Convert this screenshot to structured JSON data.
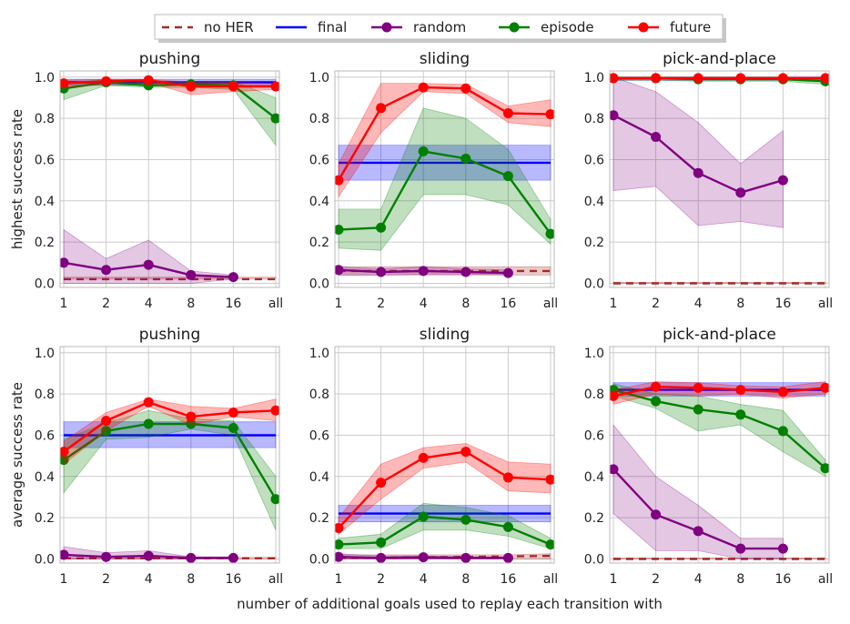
{
  "figure": {
    "xlabel": "number of additional goals used to replay each transition with",
    "legend": {
      "placement": "top-center",
      "items": [
        {
          "key": "noher",
          "label": "no HER",
          "color": "#a52a2a",
          "style": "dashed"
        },
        {
          "key": "final",
          "label": "final",
          "color": "#0000ff",
          "style": "line"
        },
        {
          "key": "random",
          "label": "random",
          "color": "#800080",
          "style": "line-marker"
        },
        {
          "key": "episode",
          "label": "episode",
          "color": "#008000",
          "style": "line-marker"
        },
        {
          "key": "future",
          "label": "future",
          "color": "#ff0000",
          "style": "line-marker"
        }
      ]
    }
  },
  "chart_data": [
    {
      "type": "line",
      "row": 0,
      "col": 0,
      "title": "pushing",
      "ylabel": "highest success rate",
      "categories": [
        "1",
        "2",
        "4",
        "8",
        "16",
        "all"
      ],
      "yticks": [
        "0.0",
        "0.2",
        "0.4",
        "0.6",
        "0.8",
        "1.0"
      ],
      "ylim": [
        -0.02,
        1.03
      ],
      "grid": true,
      "series": [
        {
          "key": "noher",
          "values": [
            0.02,
            0.02,
            0.02,
            0.02,
            0.02,
            0.02
          ],
          "lo": [
            0.02,
            0.02,
            0.02,
            0.02,
            0.02,
            0.02
          ],
          "hi": [
            0.03,
            0.03,
            0.03,
            0.03,
            0.03,
            0.03
          ]
        },
        {
          "key": "final",
          "values": [
            0.975,
            0.975,
            0.975,
            0.975,
            0.975,
            0.975
          ],
          "lo": [
            0.96,
            0.96,
            0.96,
            0.96,
            0.96,
            0.96
          ],
          "hi": [
            0.99,
            0.99,
            0.99,
            0.99,
            0.99,
            0.99
          ]
        },
        {
          "key": "random",
          "values": [
            0.1,
            0.065,
            0.09,
            0.04,
            0.03,
            null
          ],
          "lo": [
            0.0,
            0.0,
            0.0,
            0.0,
            0.02,
            null
          ],
          "hi": [
            0.26,
            0.12,
            0.21,
            0.06,
            0.04,
            null
          ]
        },
        {
          "key": "episode",
          "values": [
            0.945,
            0.975,
            0.96,
            0.965,
            0.96,
            0.8
          ],
          "lo": [
            0.89,
            0.96,
            0.95,
            0.95,
            0.94,
            0.67
          ],
          "hi": [
            0.97,
            0.99,
            0.97,
            0.98,
            0.98,
            0.9
          ]
        },
        {
          "key": "future",
          "values": [
            0.97,
            0.98,
            0.985,
            0.955,
            0.955,
            0.955
          ],
          "lo": [
            0.95,
            0.965,
            0.975,
            0.915,
            0.93,
            0.94
          ],
          "hi": [
            0.985,
            0.99,
            0.99,
            0.975,
            0.975,
            0.97
          ]
        }
      ]
    },
    {
      "type": "line",
      "row": 0,
      "col": 1,
      "title": "sliding",
      "ylabel": "",
      "categories": [
        "1",
        "2",
        "4",
        "8",
        "16",
        "all"
      ],
      "yticks": [
        "0.0",
        "0.2",
        "0.4",
        "0.6",
        "0.8",
        "1.0"
      ],
      "ylim": [
        -0.02,
        1.03
      ],
      "grid": true,
      "series": [
        {
          "key": "noher",
          "values": [
            0.06,
            0.06,
            0.06,
            0.06,
            0.06,
            0.06
          ],
          "lo": [
            0.04,
            0.04,
            0.04,
            0.04,
            0.04,
            0.04
          ],
          "hi": [
            0.08,
            0.08,
            0.08,
            0.08,
            0.08,
            0.08
          ]
        },
        {
          "key": "final",
          "values": [
            0.585,
            0.585,
            0.585,
            0.585,
            0.585,
            0.585
          ],
          "lo": [
            0.5,
            0.5,
            0.5,
            0.5,
            0.5,
            0.5
          ],
          "hi": [
            0.67,
            0.67,
            0.67,
            0.67,
            0.67,
            0.67
          ]
        },
        {
          "key": "random",
          "values": [
            0.065,
            0.055,
            0.06,
            0.055,
            0.05,
            null
          ],
          "lo": [
            0.04,
            0.04,
            0.045,
            0.045,
            0.04,
            null
          ],
          "hi": [
            0.08,
            0.07,
            0.08,
            0.07,
            0.065,
            null
          ]
        },
        {
          "key": "episode",
          "values": [
            0.26,
            0.27,
            0.64,
            0.605,
            0.52,
            0.24
          ],
          "lo": [
            0.17,
            0.16,
            0.43,
            0.43,
            0.38,
            0.19
          ],
          "hi": [
            0.36,
            0.36,
            0.85,
            0.8,
            0.65,
            0.31
          ]
        },
        {
          "key": "future",
          "values": [
            0.5,
            0.85,
            0.95,
            0.945,
            0.825,
            0.82
          ],
          "lo": [
            0.42,
            0.73,
            0.93,
            0.92,
            0.78,
            0.76
          ],
          "hi": [
            0.58,
            0.97,
            0.97,
            0.965,
            0.86,
            0.89
          ]
        }
      ]
    },
    {
      "type": "line",
      "row": 0,
      "col": 2,
      "title": "pick-and-place",
      "ylabel": "",
      "categories": [
        "1",
        "2",
        "4",
        "8",
        "16",
        "all"
      ],
      "yticks": [
        "0.0",
        "0.2",
        "0.4",
        "0.6",
        "0.8",
        "1.0"
      ],
      "ylim": [
        -0.02,
        1.03
      ],
      "grid": true,
      "series": [
        {
          "key": "noher",
          "values": [
            0.0,
            0.0,
            0.0,
            0.0,
            0.0,
            0.0
          ],
          "lo": [
            0.0,
            0.0,
            0.0,
            0.0,
            0.0,
            0.0
          ],
          "hi": [
            0.005,
            0.005,
            0.005,
            0.005,
            0.005,
            0.005
          ]
        },
        {
          "key": "final",
          "values": [
            0.995,
            0.995,
            0.995,
            0.995,
            0.995,
            0.995
          ],
          "lo": [
            0.985,
            0.985,
            0.985,
            0.985,
            0.985,
            0.985
          ],
          "hi": [
            1.0,
            1.0,
            1.0,
            1.0,
            1.0,
            1.0
          ]
        },
        {
          "key": "random",
          "values": [
            0.815,
            0.71,
            0.535,
            0.44,
            0.5,
            null
          ],
          "lo": [
            0.45,
            0.47,
            0.28,
            0.3,
            0.27,
            null
          ],
          "hi": [
            1.0,
            0.93,
            0.78,
            0.58,
            0.74,
            null
          ]
        },
        {
          "key": "episode",
          "values": [
            0.995,
            0.995,
            0.99,
            0.99,
            0.99,
            0.98
          ],
          "lo": [
            0.985,
            0.985,
            0.98,
            0.98,
            0.98,
            0.965
          ],
          "hi": [
            1.0,
            1.0,
            1.0,
            1.0,
            1.0,
            0.99
          ]
        },
        {
          "key": "future",
          "values": [
            0.995,
            0.995,
            0.995,
            0.995,
            0.995,
            0.995
          ],
          "lo": [
            0.99,
            0.99,
            0.99,
            0.99,
            0.99,
            0.99
          ],
          "hi": [
            1.0,
            1.0,
            1.0,
            1.0,
            1.0,
            1.0
          ]
        }
      ]
    },
    {
      "type": "line",
      "row": 1,
      "col": 0,
      "title": "pushing",
      "ylabel": "average success rate",
      "categories": [
        "1",
        "2",
        "4",
        "8",
        "16",
        "all"
      ],
      "yticks": [
        "0.0",
        "0.2",
        "0.4",
        "0.6",
        "0.8",
        "1.0"
      ],
      "ylim": [
        -0.02,
        1.03
      ],
      "grid": true,
      "series": [
        {
          "key": "noher",
          "values": [
            0.003,
            0.003,
            0.003,
            0.003,
            0.003,
            0.003
          ],
          "lo": [
            0.0,
            0.0,
            0.0,
            0.0,
            0.0,
            0.0
          ],
          "hi": [
            0.008,
            0.008,
            0.008,
            0.008,
            0.008,
            0.008
          ]
        },
        {
          "key": "final",
          "values": [
            0.6,
            0.6,
            0.6,
            0.6,
            0.6,
            0.6
          ],
          "lo": [
            0.54,
            0.54,
            0.54,
            0.54,
            0.54,
            0.54
          ],
          "hi": [
            0.665,
            0.665,
            0.665,
            0.665,
            0.665,
            0.665
          ]
        },
        {
          "key": "random",
          "values": [
            0.02,
            0.01,
            0.015,
            0.005,
            0.005,
            null
          ],
          "lo": [
            0.0,
            0.0,
            0.0,
            0.0,
            0.0,
            null
          ],
          "hi": [
            0.06,
            0.03,
            0.04,
            0.01,
            0.01,
            null
          ]
        },
        {
          "key": "episode",
          "values": [
            0.48,
            0.62,
            0.655,
            0.655,
            0.635,
            0.29
          ],
          "lo": [
            0.32,
            0.58,
            0.59,
            0.63,
            0.6,
            0.14
          ],
          "hi": [
            0.58,
            0.66,
            0.72,
            0.68,
            0.67,
            0.4
          ]
        },
        {
          "key": "future",
          "values": [
            0.52,
            0.67,
            0.76,
            0.69,
            0.71,
            0.72
          ],
          "lo": [
            0.46,
            0.62,
            0.74,
            0.65,
            0.69,
            0.67
          ],
          "hi": [
            0.57,
            0.71,
            0.775,
            0.74,
            0.73,
            0.775
          ]
        }
      ]
    },
    {
      "type": "line",
      "row": 1,
      "col": 1,
      "title": "sliding",
      "ylabel": "",
      "categories": [
        "1",
        "2",
        "4",
        "8",
        "16",
        "all"
      ],
      "yticks": [
        "0.0",
        "0.2",
        "0.4",
        "0.6",
        "0.8",
        "1.0"
      ],
      "ylim": [
        -0.02,
        1.03
      ],
      "grid": true,
      "series": [
        {
          "key": "noher",
          "values": [
            0.005,
            0.006,
            0.008,
            0.01,
            0.012,
            0.015
          ],
          "lo": [
            0.0,
            0.0,
            0.0,
            0.0,
            0.0,
            0.0
          ],
          "hi": [
            0.02,
            0.02,
            0.02,
            0.02,
            0.02,
            0.025
          ]
        },
        {
          "key": "final",
          "values": [
            0.22,
            0.22,
            0.22,
            0.22,
            0.22,
            0.22
          ],
          "lo": [
            0.18,
            0.18,
            0.18,
            0.18,
            0.18,
            0.18
          ],
          "hi": [
            0.26,
            0.26,
            0.26,
            0.26,
            0.26,
            0.26
          ]
        },
        {
          "key": "random",
          "values": [
            0.01,
            0.005,
            0.008,
            0.005,
            0.005,
            null
          ],
          "lo": [
            0.0,
            0.0,
            0.0,
            0.0,
            0.0,
            null
          ],
          "hi": [
            0.025,
            0.015,
            0.015,
            0.01,
            0.01,
            null
          ]
        },
        {
          "key": "episode",
          "values": [
            0.07,
            0.08,
            0.205,
            0.19,
            0.155,
            0.07
          ],
          "lo": [
            0.05,
            0.05,
            0.14,
            0.14,
            0.11,
            0.05
          ],
          "hi": [
            0.1,
            0.12,
            0.27,
            0.25,
            0.21,
            0.1
          ]
        },
        {
          "key": "future",
          "values": [
            0.15,
            0.37,
            0.49,
            0.52,
            0.395,
            0.385
          ],
          "lo": [
            0.12,
            0.29,
            0.44,
            0.47,
            0.33,
            0.32
          ],
          "hi": [
            0.2,
            0.46,
            0.54,
            0.56,
            0.47,
            0.46
          ]
        }
      ]
    },
    {
      "type": "line",
      "row": 1,
      "col": 2,
      "title": "pick-and-place",
      "ylabel": "",
      "categories": [
        "1",
        "2",
        "4",
        "8",
        "16",
        "all"
      ],
      "yticks": [
        "0.0",
        "0.2",
        "0.4",
        "0.6",
        "0.8",
        "1.0"
      ],
      "ylim": [
        -0.02,
        1.03
      ],
      "grid": true,
      "series": [
        {
          "key": "noher",
          "values": [
            0.0,
            0.0,
            0.0,
            0.0,
            0.0,
            0.0
          ],
          "lo": [
            0.0,
            0.0,
            0.0,
            0.0,
            0.0,
            0.0
          ],
          "hi": [
            0.005,
            0.005,
            0.005,
            0.005,
            0.005,
            0.005
          ]
        },
        {
          "key": "final",
          "values": [
            0.82,
            0.82,
            0.82,
            0.82,
            0.82,
            0.82
          ],
          "lo": [
            0.79,
            0.79,
            0.79,
            0.79,
            0.79,
            0.79
          ],
          "hi": [
            0.855,
            0.855,
            0.855,
            0.855,
            0.855,
            0.855
          ]
        },
        {
          "key": "random",
          "values": [
            0.435,
            0.215,
            0.135,
            0.05,
            0.05,
            null
          ],
          "lo": [
            0.22,
            0.04,
            0.04,
            0.0,
            0.0,
            null
          ],
          "hi": [
            0.65,
            0.4,
            0.26,
            0.1,
            0.1,
            null
          ]
        },
        {
          "key": "episode",
          "values": [
            0.82,
            0.765,
            0.725,
            0.7,
            0.62,
            0.44
          ],
          "lo": [
            0.79,
            0.73,
            0.62,
            0.65,
            0.52,
            0.4
          ],
          "hi": [
            0.85,
            0.8,
            0.79,
            0.75,
            0.72,
            0.48
          ]
        },
        {
          "key": "future",
          "values": [
            0.79,
            0.835,
            0.83,
            0.82,
            0.81,
            0.83
          ],
          "lo": [
            0.75,
            0.8,
            0.79,
            0.8,
            0.78,
            0.8
          ],
          "hi": [
            0.82,
            0.86,
            0.855,
            0.84,
            0.835,
            0.86
          ]
        }
      ]
    }
  ]
}
